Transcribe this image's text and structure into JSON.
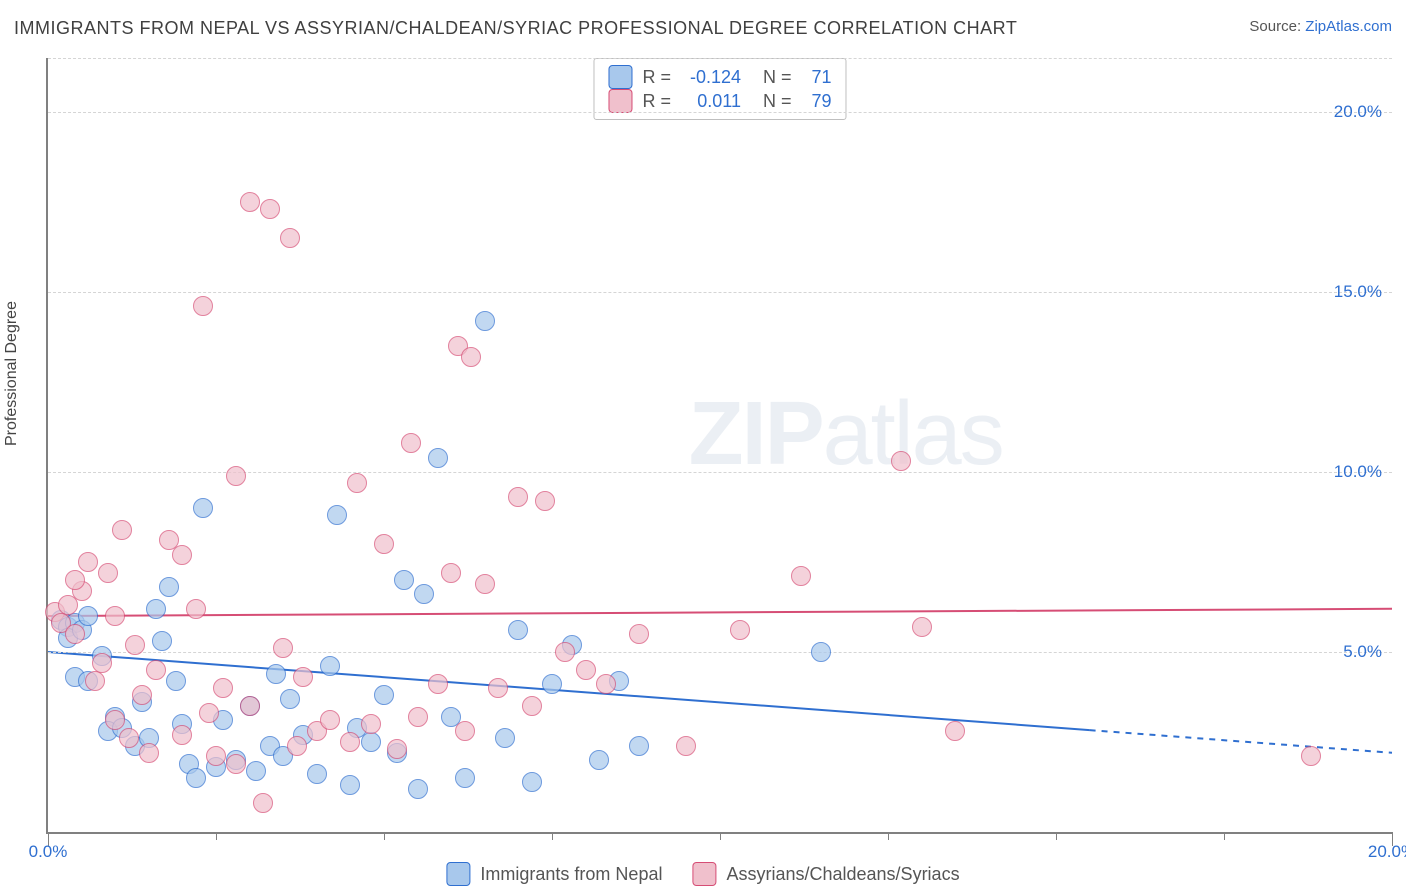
{
  "title": "IMMIGRANTS FROM NEPAL VS ASSYRIAN/CHALDEAN/SYRIAC PROFESSIONAL DEGREE CORRELATION CHART",
  "source_prefix": "Source: ",
  "source_link": "ZipAtlas.com",
  "ylabel": "Professional Degree",
  "watermark_bold": "ZIP",
  "watermark_light": "atlas",
  "chart": {
    "type": "scatter",
    "xlim": [
      0,
      20
    ],
    "ylim": [
      0,
      21.5
    ],
    "xticks_major": [
      0,
      20
    ],
    "xticks_minor": [
      2.5,
      5,
      7.5,
      10,
      12.5,
      15,
      17.5
    ],
    "yticks": [
      5,
      10,
      15,
      20
    ],
    "ytick_labels": [
      "5.0%",
      "10.0%",
      "15.0%",
      "20.0%"
    ],
    "xtick_labels": {
      "0": "0.0%",
      "20": "20.0%"
    },
    "background_color": "#ffffff",
    "grid_color": "#d5d5d5",
    "marker_radius": 9,
    "marker_opacity": 0.7,
    "series": [
      {
        "name": "Immigrants from Nepal",
        "color_fill": "#a8c8ec",
        "color_border": "#2f6fd0",
        "R": "-0.124",
        "N": "71",
        "trend": {
          "y_at_x0": 5.0,
          "y_at_xmax": 2.2,
          "solid_until_x": 15.5,
          "line_color": "#2f6fd0",
          "line_width": 2
        },
        "points": [
          [
            0.2,
            5.9
          ],
          [
            0.3,
            5.7
          ],
          [
            0.4,
            5.8
          ],
          [
            0.3,
            5.4
          ],
          [
            0.5,
            5.6
          ],
          [
            0.6,
            6.0
          ],
          [
            0.4,
            4.3
          ],
          [
            0.6,
            4.2
          ],
          [
            0.8,
            4.9
          ],
          [
            1.0,
            3.2
          ],
          [
            0.9,
            2.8
          ],
          [
            1.1,
            2.9
          ],
          [
            1.3,
            2.4
          ],
          [
            1.5,
            2.6
          ],
          [
            1.4,
            3.6
          ],
          [
            1.6,
            6.2
          ],
          [
            1.7,
            5.3
          ],
          [
            1.8,
            6.8
          ],
          [
            1.9,
            4.2
          ],
          [
            2.0,
            3.0
          ],
          [
            2.1,
            1.9
          ],
          [
            2.2,
            1.5
          ],
          [
            2.3,
            9.0
          ],
          [
            2.5,
            1.8
          ],
          [
            2.6,
            3.1
          ],
          [
            2.8,
            2.0
          ],
          [
            3.0,
            3.5
          ],
          [
            3.1,
            1.7
          ],
          [
            3.3,
            2.4
          ],
          [
            3.4,
            4.4
          ],
          [
            3.5,
            2.1
          ],
          [
            3.6,
            3.7
          ],
          [
            3.8,
            2.7
          ],
          [
            4.0,
            1.6
          ],
          [
            4.2,
            4.6
          ],
          [
            4.3,
            8.8
          ],
          [
            4.5,
            1.3
          ],
          [
            4.6,
            2.9
          ],
          [
            4.8,
            2.5
          ],
          [
            5.0,
            3.8
          ],
          [
            5.2,
            2.2
          ],
          [
            5.3,
            7.0
          ],
          [
            5.5,
            1.2
          ],
          [
            5.6,
            6.6
          ],
          [
            5.8,
            10.4
          ],
          [
            6.0,
            3.2
          ],
          [
            6.2,
            1.5
          ],
          [
            6.5,
            14.2
          ],
          [
            6.8,
            2.6
          ],
          [
            7.0,
            5.6
          ],
          [
            7.2,
            1.4
          ],
          [
            7.5,
            4.1
          ],
          [
            7.8,
            5.2
          ],
          [
            8.2,
            2.0
          ],
          [
            8.5,
            4.2
          ],
          [
            8.8,
            2.4
          ],
          [
            11.5,
            5.0
          ]
        ]
      },
      {
        "name": "Assyrians/Chaldeans/Syriacs",
        "color_fill": "#f0c0cc",
        "color_border": "#d64d75",
        "R": "0.011",
        "N": "79",
        "trend": {
          "y_at_x0": 6.0,
          "y_at_xmax": 6.2,
          "solid_until_x": 20,
          "line_color": "#d64d75",
          "line_width": 2
        },
        "points": [
          [
            0.1,
            6.1
          ],
          [
            0.2,
            5.8
          ],
          [
            0.3,
            6.3
          ],
          [
            0.4,
            5.5
          ],
          [
            0.5,
            6.7
          ],
          [
            0.4,
            7.0
          ],
          [
            0.6,
            7.5
          ],
          [
            0.7,
            4.2
          ],
          [
            0.8,
            4.7
          ],
          [
            0.9,
            7.2
          ],
          [
            1.0,
            6.0
          ],
          [
            1.0,
            3.1
          ],
          [
            1.1,
            8.4
          ],
          [
            1.2,
            2.6
          ],
          [
            1.3,
            5.2
          ],
          [
            1.4,
            3.8
          ],
          [
            1.5,
            2.2
          ],
          [
            1.6,
            4.5
          ],
          [
            1.8,
            8.1
          ],
          [
            2.0,
            7.7
          ],
          [
            2.0,
            2.7
          ],
          [
            2.2,
            6.2
          ],
          [
            2.3,
            14.6
          ],
          [
            2.4,
            3.3
          ],
          [
            2.5,
            2.1
          ],
          [
            2.6,
            4.0
          ],
          [
            2.8,
            9.9
          ],
          [
            2.8,
            1.9
          ],
          [
            3.0,
            3.5
          ],
          [
            3.0,
            17.5
          ],
          [
            3.2,
            0.8
          ],
          [
            3.3,
            17.3
          ],
          [
            3.5,
            5.1
          ],
          [
            3.6,
            16.5
          ],
          [
            3.7,
            2.4
          ],
          [
            3.8,
            4.3
          ],
          [
            4.0,
            2.8
          ],
          [
            4.2,
            3.1
          ],
          [
            4.5,
            2.5
          ],
          [
            4.6,
            9.7
          ],
          [
            4.8,
            3.0
          ],
          [
            5.0,
            8.0
          ],
          [
            5.2,
            2.3
          ],
          [
            5.4,
            10.8
          ],
          [
            5.5,
            3.2
          ],
          [
            5.8,
            4.1
          ],
          [
            6.0,
            7.2
          ],
          [
            6.1,
            13.5
          ],
          [
            6.2,
            2.8
          ],
          [
            6.3,
            13.2
          ],
          [
            6.5,
            6.9
          ],
          [
            6.7,
            4.0
          ],
          [
            7.0,
            9.3
          ],
          [
            7.2,
            3.5
          ],
          [
            7.4,
            9.2
          ],
          [
            7.7,
            5.0
          ],
          [
            8.0,
            4.5
          ],
          [
            8.3,
            4.1
          ],
          [
            8.8,
            5.5
          ],
          [
            9.5,
            2.4
          ],
          [
            10.3,
            5.6
          ],
          [
            11.2,
            7.1
          ],
          [
            12.7,
            10.3
          ],
          [
            13.0,
            5.7
          ],
          [
            13.5,
            2.8
          ],
          [
            18.8,
            2.1
          ]
        ]
      }
    ]
  },
  "bottom_legend": [
    {
      "swatch_fill": "#a8c8ec",
      "swatch_border": "#2f6fd0",
      "label": "Immigrants from Nepal"
    },
    {
      "swatch_fill": "#f0c0cc",
      "swatch_border": "#d64d75",
      "label": "Assyrians/Chaldeans/Syriacs"
    }
  ]
}
